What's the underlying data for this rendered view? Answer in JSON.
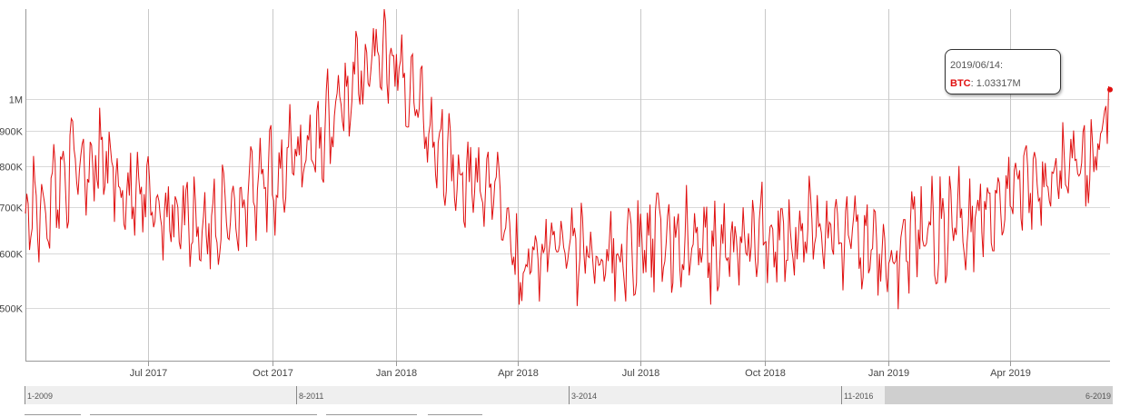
{
  "chart_data": {
    "type": "line",
    "title": "",
    "xlabel": "",
    "ylabel": "",
    "y_scale": "log",
    "ylim": [
      420000,
      1350000
    ],
    "y_ticks": [
      {
        "value": 500000,
        "label": "500K"
      },
      {
        "value": 600000,
        "label": "600K"
      },
      {
        "value": 700000,
        "label": "700K"
      },
      {
        "value": 800000,
        "label": "800K"
      },
      {
        "value": 900000,
        "label": "900K"
      },
      {
        "value": 1000000,
        "label": "1M"
      }
    ],
    "x_range": [
      "2017-04-01",
      "2019-06-14"
    ],
    "x_ticks": [
      {
        "date": "2017-07-01",
        "label": "Jul 2017"
      },
      {
        "date": "2017-10-01",
        "label": "Oct 2017"
      },
      {
        "date": "2018-01-01",
        "label": "Jan 2018"
      },
      {
        "date": "2018-04-01",
        "label": "Apr 2018"
      },
      {
        "date": "2018-07-01",
        "label": "Jul 2018"
      },
      {
        "date": "2018-10-01",
        "label": "Oct 2018"
      },
      {
        "date": "2019-01-01",
        "label": "Jan 2019"
      },
      {
        "date": "2019-04-01",
        "label": "Apr 2019"
      }
    ],
    "series": [
      {
        "name": "BTC",
        "color": "#e01010",
        "points": [
          [
            "2017-04-01",
            700000
          ],
          [
            "2017-04-15",
            690000
          ],
          [
            "2017-05-01",
            790000
          ],
          [
            "2017-05-15",
            820000
          ],
          [
            "2017-06-01",
            810000
          ],
          [
            "2017-06-15",
            730000
          ],
          [
            "2017-07-01",
            700000
          ],
          [
            "2017-07-15",
            690000
          ],
          [
            "2017-08-01",
            680000
          ],
          [
            "2017-08-15",
            650000
          ],
          [
            "2017-09-01",
            700000
          ],
          [
            "2017-09-15",
            720000
          ],
          [
            "2017-10-01",
            760000
          ],
          [
            "2017-10-15",
            820000
          ],
          [
            "2017-11-01",
            860000
          ],
          [
            "2017-11-15",
            940000
          ],
          [
            "2017-12-01",
            1050000
          ],
          [
            "2017-12-15",
            1150000
          ],
          [
            "2018-01-01",
            1100000
          ],
          [
            "2018-01-15",
            1000000
          ],
          [
            "2018-02-01",
            860000
          ],
          [
            "2018-02-15",
            800000
          ],
          [
            "2018-03-01",
            740000
          ],
          [
            "2018-03-15",
            760000
          ],
          [
            "2018-04-01",
            560000
          ],
          [
            "2018-04-15",
            590000
          ],
          [
            "2018-05-01",
            620000
          ],
          [
            "2018-05-15",
            610000
          ],
          [
            "2018-06-01",
            600000
          ],
          [
            "2018-06-15",
            590000
          ],
          [
            "2018-07-01",
            600000
          ],
          [
            "2018-07-15",
            630000
          ],
          [
            "2018-08-01",
            620000
          ],
          [
            "2018-08-15",
            610000
          ],
          [
            "2018-09-01",
            600000
          ],
          [
            "2018-09-15",
            620000
          ],
          [
            "2018-10-01",
            630000
          ],
          [
            "2018-10-15",
            640000
          ],
          [
            "2018-11-01",
            650000
          ],
          [
            "2018-11-15",
            640000
          ],
          [
            "2018-12-01",
            630000
          ],
          [
            "2018-12-15",
            610000
          ],
          [
            "2019-01-01",
            580000
          ],
          [
            "2019-01-15",
            620000
          ],
          [
            "2019-02-01",
            640000
          ],
          [
            "2019-02-15",
            660000
          ],
          [
            "2019-03-01",
            680000
          ],
          [
            "2019-03-15",
            700000
          ],
          [
            "2019-04-01",
            740000
          ],
          [
            "2019-04-15",
            770000
          ],
          [
            "2019-05-01",
            780000
          ],
          [
            "2019-05-15",
            800000
          ],
          [
            "2019-06-01",
            790000
          ],
          [
            "2019-06-14",
            1033170
          ]
        ]
      }
    ],
    "grid": true,
    "legend": "none"
  },
  "tooltip": {
    "date": "2019/06/14:",
    "series": "BTC",
    "value": ": 1.03317M"
  },
  "navigator": {
    "labels": [
      "1-2009",
      "8-2011",
      "3-2014",
      "11-2016"
    ],
    "end_label": "6-2019"
  }
}
